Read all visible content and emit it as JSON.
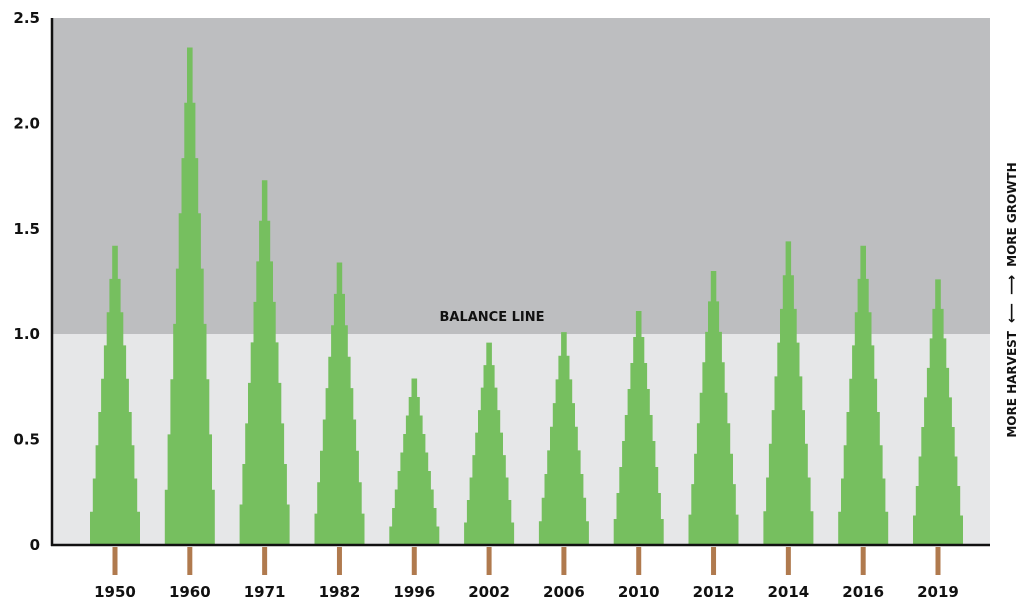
{
  "chart_data": {
    "type": "bar",
    "shape": "tree-silhouette",
    "title": "",
    "xlabel": "",
    "ylabel": "",
    "categories": [
      "1950",
      "1960",
      "1971",
      "1982",
      "1996",
      "2002",
      "2006",
      "2010",
      "2012",
      "2014",
      "2016",
      "2019"
    ],
    "values": [
      1.42,
      2.36,
      1.73,
      1.34,
      0.79,
      0.96,
      1.01,
      1.11,
      1.3,
      1.44,
      1.42,
      1.26
    ],
    "ylim": [
      0,
      2.5
    ],
    "yticks": [
      0,
      0.5,
      1.0,
      1.5,
      2.0,
      2.5
    ],
    "ytick_labels": [
      "0",
      "0.5",
      "1.0",
      "1.5",
      "2.0",
      "2.5"
    ],
    "balance_line": {
      "value": 1.0,
      "label": "BALANCE LINE"
    },
    "side_labels": {
      "upper": "MORE GROWTH",
      "lower": "MORE HARVEST"
    },
    "grid": false,
    "legend": "none",
    "colors": {
      "upper_band": "#bdbec0",
      "lower_band": "#e6e7e8",
      "tree": "#76bf5f",
      "trunk": "#b07a4e",
      "axis": "#111111"
    }
  }
}
